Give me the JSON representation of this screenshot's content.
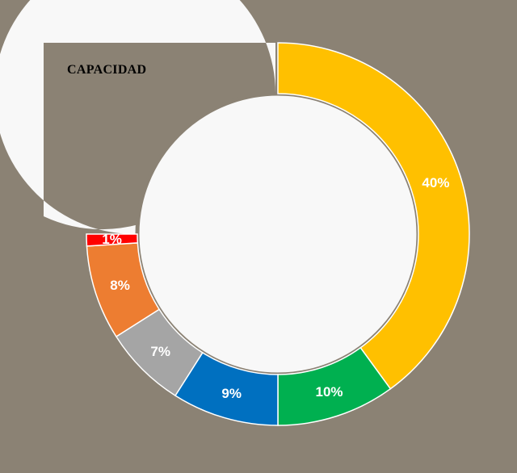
{
  "chart_data": {
    "type": "pie",
    "style": "donut",
    "title": "CAPACIDAD",
    "background_color": "#8b8274",
    "panel_color": "#f8f8f8",
    "slices": [
      {
        "value": 40,
        "label": "40%",
        "color": "#ffc000"
      },
      {
        "value": 10,
        "label": "10%",
        "color": "#00b050"
      },
      {
        "value": 9,
        "label": "9%",
        "color": "#0070c0"
      },
      {
        "value": 7,
        "label": "7%",
        "color": "#a5a5a5"
      },
      {
        "value": 8,
        "label": "8%",
        "color": "#ed7d31"
      },
      {
        "value": 1,
        "label": "1%",
        "color": "#ff0000"
      }
    ]
  }
}
